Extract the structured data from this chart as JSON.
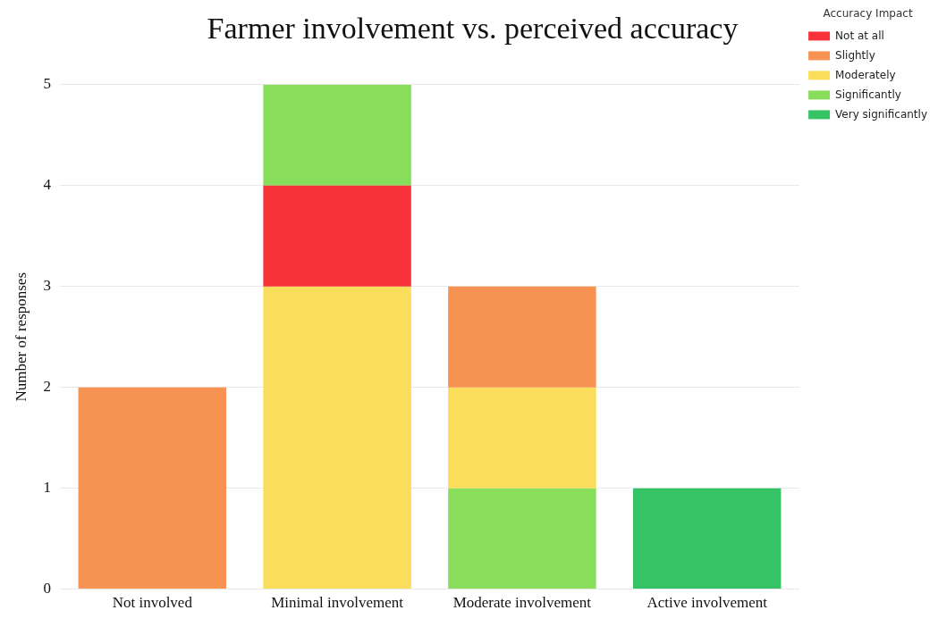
{
  "chart_data": {
    "type": "bar",
    "title": "Farmer involvement vs. perceived accuracy",
    "ylabel": "Number of responses",
    "legend_title": "Accuracy Impact",
    "categories": [
      "Not involved",
      "Minimal involvement",
      "Moderate involvement",
      "Active involvement"
    ],
    "series": [
      {
        "name": "Not at all",
        "color": "#f7323a",
        "values": [
          null,
          1,
          null,
          null
        ],
        "base": [
          null,
          3,
          null,
          null
        ]
      },
      {
        "name": "Slightly",
        "color": "#f79352",
        "values": [
          2,
          null,
          1,
          null
        ],
        "base": [
          0,
          null,
          2,
          null
        ]
      },
      {
        "name": "Moderately",
        "color": "#fbdd5c",
        "values": [
          null,
          3,
          1,
          null
        ],
        "base": [
          null,
          0,
          1,
          null
        ]
      },
      {
        "name": "Significantly",
        "color": "#88dd5a",
        "values": [
          null,
          1,
          1,
          null
        ],
        "base": [
          null,
          4,
          0,
          null
        ]
      },
      {
        "name": "Very significantly",
        "color": "#36c366",
        "values": [
          null,
          null,
          null,
          1
        ],
        "base": [
          null,
          null,
          null,
          0
        ]
      }
    ],
    "ylim": [
      0,
      5
    ],
    "yticks": [
      0,
      1,
      2,
      3,
      4,
      5
    ],
    "grid": "y",
    "legend": "top right"
  }
}
